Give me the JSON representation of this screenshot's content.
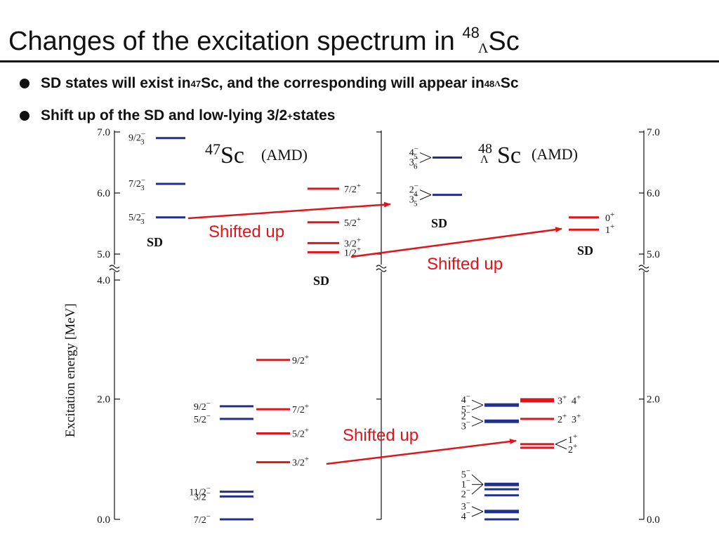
{
  "title": {
    "text": "Changes of the excitation spectrum in ",
    "mass": "48",
    "lambda": "Λ",
    "element": "Sc"
  },
  "bullets": [
    {
      "part1": "SD states will exist in ",
      "sup1": "47",
      "part2": "Sc, and the corresponding will appear in ",
      "sup2": "48",
      "sub2": "Λ",
      "part3": "Sc"
    },
    {
      "part1": "Shift up of the SD and low-lying 3/2",
      "sup1": "+",
      "part2": " states"
    }
  ],
  "colors": {
    "negative_parity": "#22308a",
    "positive_parity": "#e0141b",
    "arrow": "#e0141b",
    "axis": "#111111"
  },
  "diagram": {
    "y_axis_label": "Excitation energy [MeV]",
    "left_ticks": [
      "7.0",
      "6.0",
      "5.0",
      "4.0",
      "2.0",
      "0.0"
    ],
    "right_ticks": [
      "7.0",
      "6.0",
      "5.0",
      "2.0",
      "0.0"
    ],
    "left_panel": {
      "nucleus_mass": "47",
      "nucleus_element": "Sc",
      "method": "(AMD)",
      "sd_label": "SD",
      "sd_negative_levels": [
        {
          "label": "9/2",
          "sup": "−",
          "sub": "3",
          "energy": 6.9
        },
        {
          "label": "7/2",
          "sup": "−",
          "sub": "3",
          "energy": 6.15
        },
        {
          "label": "5/2",
          "sup": "−",
          "sub": "3",
          "energy": 5.6
        }
      ],
      "sd_positive_label": "SD",
      "sd_positive_levels": [
        {
          "label": "7/2",
          "sup": "+",
          "energy": 6.07
        },
        {
          "label": "5/2",
          "sup": "+",
          "energy": 5.52
        },
        {
          "label": "3/2",
          "sup": "+",
          "energy": 5.18
        },
        {
          "label": "1/2",
          "sup": "+",
          "energy": 5.03
        }
      ],
      "low_negative_levels": [
        {
          "label": "9/2",
          "sup": "−",
          "energy": 1.88
        },
        {
          "label": "5/2",
          "sup": "−",
          "energy": 1.67
        },
        {
          "label": "11/2",
          "sup": "−",
          "energy": 0.46
        },
        {
          "label": "3/2",
          "sup": "−",
          "energy": 0.38
        },
        {
          "label": "7/2",
          "sup": "−",
          "energy": 0.0
        }
      ],
      "low_positive_levels": [
        {
          "label": "9/2",
          "sup": "+",
          "energy": 2.65
        },
        {
          "label": "7/2",
          "sup": "+",
          "energy": 1.83
        },
        {
          "label": "5/2",
          "sup": "+",
          "energy": 1.43
        },
        {
          "label": "3/2",
          "sup": "+",
          "energy": 0.95
        }
      ]
    },
    "right_panel": {
      "nucleus_mass": "48",
      "nucleus_lambda": "Λ",
      "nucleus_element": "Sc",
      "method": "(AMD)",
      "sd_negative_label": "SD",
      "sd_negative_levels": [
        {
          "labels": [
            "4",
            "3"
          ],
          "sups": [
            "−",
            "−"
          ],
          "subs": [
            "5",
            "6"
          ],
          "energy": 6.58
        },
        {
          "labels": [
            "2",
            "3"
          ],
          "sups": [
            "−",
            "−"
          ],
          "subs": [
            "4",
            "5"
          ],
          "energy": 5.97
        }
      ],
      "sd_positive_label": "SD",
      "sd_positive_levels": [
        {
          "label": "0",
          "sup": "+",
          "energy": 5.6
        },
        {
          "label": "1",
          "sup": "+",
          "energy": 5.4
        }
      ],
      "low_negative_levels": [
        {
          "labels": [
            "4",
            "5"
          ],
          "sups": [
            "−",
            "−"
          ],
          "energy": 1.9
        },
        {
          "labels": [
            "2",
            "3"
          ],
          "sups": [
            "−",
            "−"
          ],
          "energy": 1.63
        },
        {
          "labels": [
            "5",
            "1",
            "2"
          ],
          "sups": [
            "−",
            "−",
            "−"
          ],
          "energy": 0.58
        },
        {
          "labels": [
            "3",
            "4"
          ],
          "sups": [
            "−",
            "−"
          ],
          "energy": 0.13
        }
      ],
      "low_positive_levels": [
        {
          "labels": [
            "3",
            "4"
          ],
          "sups": [
            "+",
            "+"
          ],
          "energy": 1.98
        },
        {
          "labels": [
            "2",
            "3"
          ],
          "sups": [
            "+",
            "+"
          ],
          "energy": 1.67
        },
        {
          "labels": [
            "1",
            "2"
          ],
          "sups": [
            "+",
            "+"
          ],
          "energy": 1.25
        }
      ]
    },
    "annotations": [
      {
        "text": "Shifted up"
      },
      {
        "text": "Shifted up"
      },
      {
        "text": "Shifted up"
      }
    ]
  }
}
